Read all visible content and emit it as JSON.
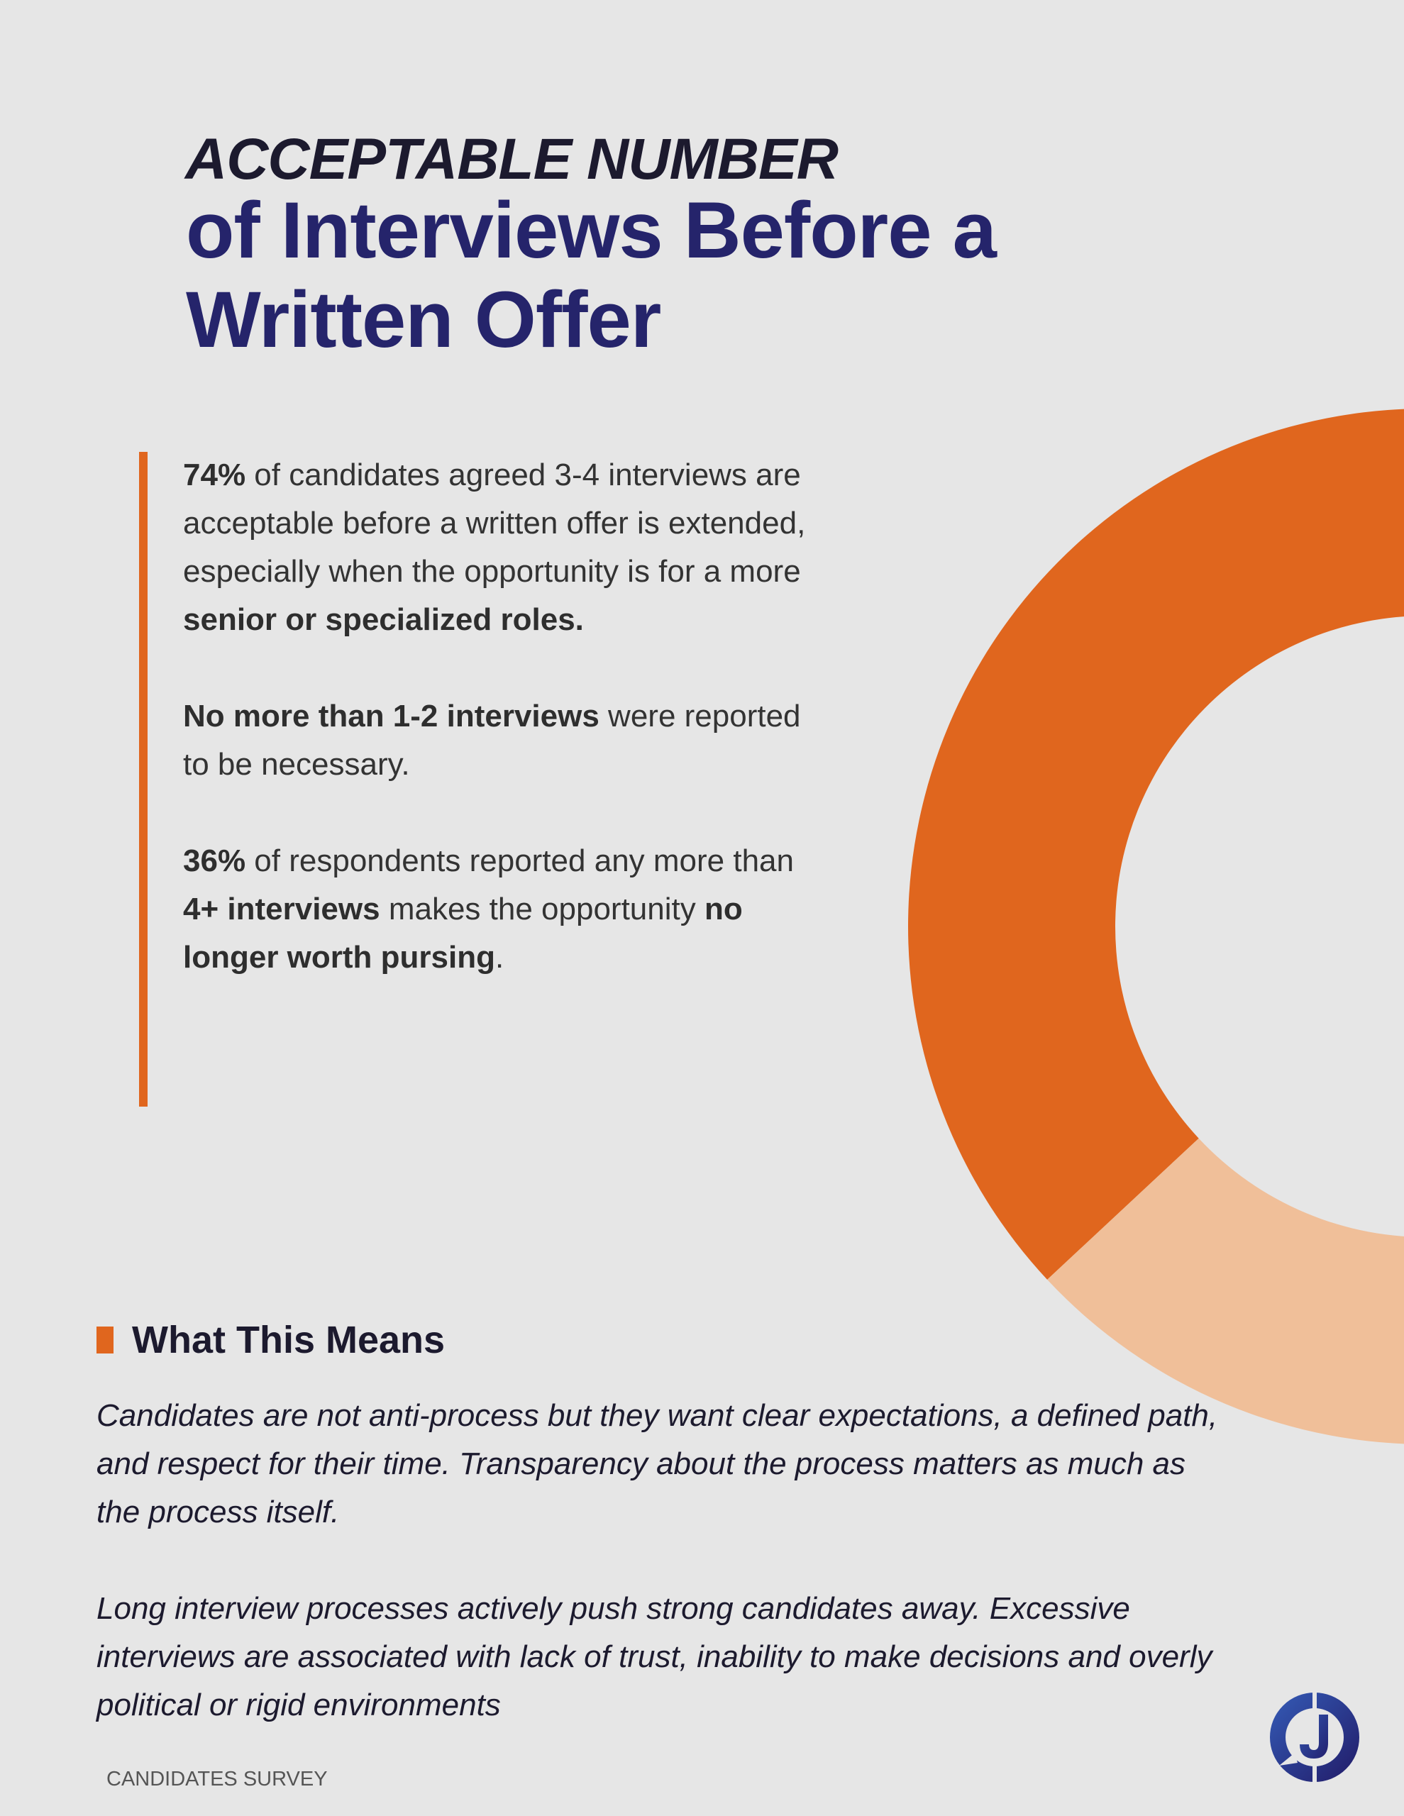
{
  "title": {
    "line1": "ACCEPTABLE NUMBER",
    "line2": "of Interviews Before a Written Offer"
  },
  "findings": [
    {
      "b1": "74%",
      "t1": " of candidates agreed 3-4 interviews are acceptable before a written offer is extended, especially when the opportunity is for a more ",
      "b2": "senior or specialized roles.",
      "t2": "",
      "b3": "",
      "t3": ""
    },
    {
      "b1": "No more than 1-2 interviews",
      "t1": " were reported to be necessary.",
      "b2": "",
      "t2": "",
      "b3": "",
      "t3": ""
    },
    {
      "b1": "36%",
      "t1": " of respondents reported any more than ",
      "b2": "4+ interviews",
      "t2": " makes the opportunity ",
      "b3": "no longer worth pursing",
      "t3": "."
    }
  ],
  "what_this_means": {
    "heading": "What This Means",
    "paragraphs": [
      "Candidates are not anti-process but they want clear expectations, a defined path, and respect for their time. Transparency about the process matters as much as the process itself.",
      "Long interview processes actively push strong candidates away. Excessive interviews are associated with lack of trust, inability to make decisions and overly political or rigid environments"
    ]
  },
  "footer": "CANDIDATES SURVEY",
  "logo": {
    "letter": "J"
  },
  "donut": {
    "dark_color": "#e0661e",
    "light_color": "#f0bf99"
  },
  "colors": {
    "accent": "#e0661e",
    "title_navy": "#25246b",
    "logo_blue": "#2a3a8f"
  }
}
